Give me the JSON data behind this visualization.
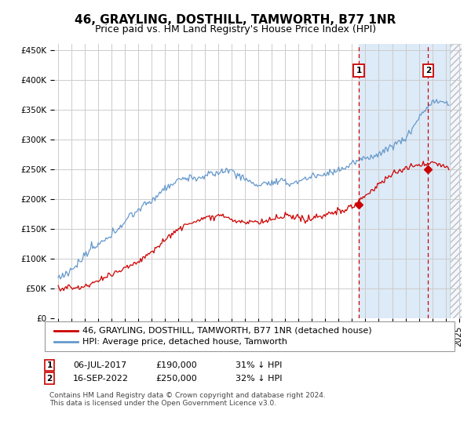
{
  "title": "46, GRAYLING, DOSTHILL, TAMWORTH, B77 1NR",
  "subtitle": "Price paid vs. HM Land Registry's House Price Index (HPI)",
  "ylim": [
    0,
    460000
  ],
  "yticks": [
    0,
    50000,
    100000,
    150000,
    200000,
    250000,
    300000,
    350000,
    400000,
    450000
  ],
  "ytick_labels": [
    "£0",
    "£50K",
    "£100K",
    "£150K",
    "£200K",
    "£250K",
    "£300K",
    "£350K",
    "£400K",
    "£450K"
  ],
  "xtick_years": [
    1995,
    1996,
    1997,
    1998,
    1999,
    2000,
    2001,
    2002,
    2003,
    2004,
    2005,
    2006,
    2007,
    2008,
    2009,
    2010,
    2011,
    2012,
    2013,
    2014,
    2015,
    2016,
    2017,
    2018,
    2019,
    2020,
    2021,
    2022,
    2023,
    2024,
    2025
  ],
  "hpi_color": "#6699cc",
  "price_color": "#cc0000",
  "marker1_year": 2017.5,
  "marker1_price": 190000,
  "marker2_year": 2022.7,
  "marker2_price": 250000,
  "legend_label1": "46, GRAYLING, DOSTHILL, TAMWORTH, B77 1NR (detached house)",
  "legend_label2": "HPI: Average price, detached house, Tamworth",
  "table_row1": [
    "1",
    "06-JUL-2017",
    "£190,000",
    "31% ↓ HPI"
  ],
  "table_row2": [
    "2",
    "16-SEP-2022",
    "£250,000",
    "32% ↓ HPI"
  ],
  "footer": "Contains HM Land Registry data © Crown copyright and database right 2024.\nThis data is licensed under the Open Government Licence v3.0.",
  "bg_shaded_color": "#ddeaf7",
  "vline_color": "#cc0000",
  "grid_color": "#cccccc",
  "title_fontsize": 11,
  "subtitle_fontsize": 9,
  "tick_fontsize": 7.5,
  "legend_fontsize": 8,
  "xmin": 1995.0,
  "xmax": 2025.2
}
